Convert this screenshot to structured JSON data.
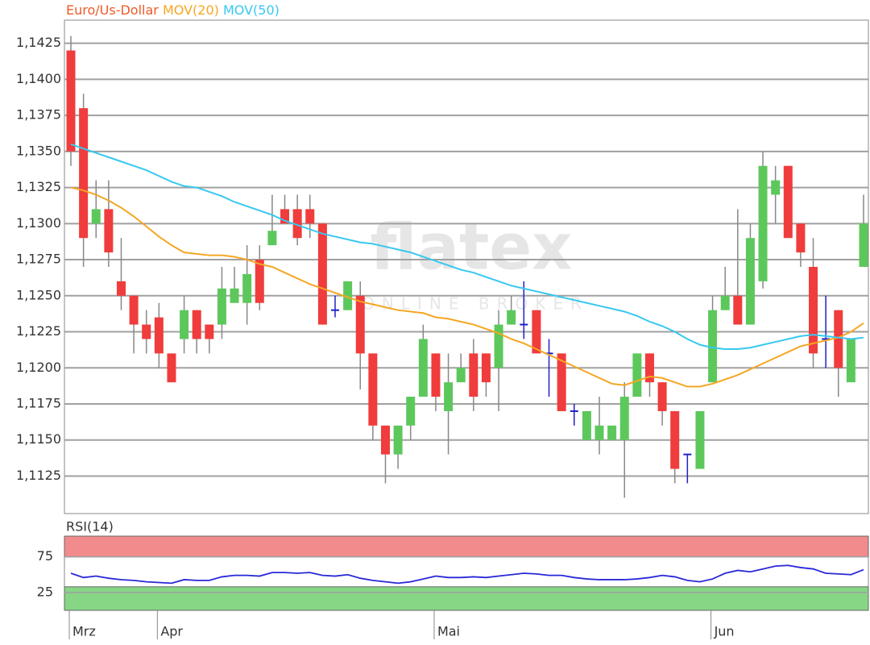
{
  "chart_data": [
    {
      "type": "candlestick",
      "name": "Euro/Us-Dollar",
      "color": "#f05a28",
      "up_color": "#5cc85c",
      "down_color": "#f03c3c",
      "unchanged_color": "#2020c8",
      "watermark": {
        "brand": "flatex",
        "tagline": "ONLINE BROKER"
      },
      "categories": [
        "Mrz",
        null,
        null,
        null,
        null,
        null,
        null,
        "Apr",
        null,
        null,
        null,
        null,
        null,
        null,
        null,
        null,
        null,
        null,
        null,
        null,
        null,
        null,
        null,
        null,
        null,
        null,
        null,
        null,
        null,
        "Mai",
        null,
        null,
        null,
        null,
        null,
        null,
        null,
        null,
        null,
        null,
        null,
        null,
        null,
        null,
        null,
        null,
        null,
        null,
        null,
        null,
        null,
        "Jun",
        null,
        null,
        null,
        null,
        null,
        null,
        null,
        null,
        null,
        null,
        null,
        null
      ],
      "open": [
        1.142,
        1.138,
        1.13,
        1.131,
        1.126,
        1.125,
        1.123,
        1.1235,
        1.121,
        1.122,
        1.124,
        1.123,
        1.123,
        1.1245,
        1.1245,
        1.1275,
        1.1285,
        1.131,
        1.131,
        1.131,
        1.13,
        1.124,
        1.124,
        1.125,
        1.121,
        1.116,
        1.114,
        1.116,
        1.118,
        1.121,
        1.117,
        1.119,
        1.121,
        1.121,
        1.12,
        1.123,
        1.123,
        1.124,
        1.121,
        1.121,
        1.117,
        1.115,
        1.115,
        1.115,
        1.115,
        1.118,
        1.121,
        1.119,
        1.117,
        1.114,
        1.113,
        1.119,
        1.124,
        1.125,
        1.123,
        1.126,
        1.132,
        1.134,
        1.13,
        1.127,
        1.122,
        1.124,
        1.119,
        1.127
      ],
      "high": [
        1.143,
        1.139,
        1.133,
        1.133,
        1.129,
        1.125,
        1.124,
        1.1245,
        1.121,
        1.125,
        1.124,
        1.123,
        1.127,
        1.127,
        1.1285,
        1.1285,
        1.132,
        1.132,
        1.132,
        1.132,
        1.13,
        1.125,
        1.126,
        1.126,
        1.121,
        1.116,
        1.116,
        1.118,
        1.123,
        1.121,
        1.121,
        1.121,
        1.122,
        1.121,
        1.124,
        1.125,
        1.126,
        1.124,
        1.122,
        1.121,
        1.1175,
        1.117,
        1.118,
        1.116,
        1.119,
        1.121,
        1.121,
        1.119,
        1.117,
        1.114,
        1.117,
        1.125,
        1.127,
        1.131,
        1.13,
        1.135,
        1.134,
        1.134,
        1.13,
        1.129,
        1.125,
        1.124,
        1.122,
        1.132
      ],
      "low": [
        1.134,
        1.127,
        1.129,
        1.127,
        1.124,
        1.121,
        1.121,
        1.12,
        1.119,
        1.121,
        1.121,
        1.121,
        1.122,
        1.1245,
        1.123,
        1.124,
        1.1285,
        1.13,
        1.1285,
        1.129,
        1.123,
        1.1235,
        1.124,
        1.1185,
        1.115,
        1.112,
        1.113,
        1.115,
        1.118,
        1.117,
        1.114,
        1.119,
        1.117,
        1.118,
        1.117,
        1.123,
        1.122,
        1.121,
        1.118,
        1.117,
        1.116,
        1.115,
        1.114,
        1.115,
        1.111,
        1.118,
        1.118,
        1.116,
        1.112,
        1.112,
        1.113,
        1.119,
        1.124,
        1.123,
        1.123,
        1.1255,
        1.13,
        1.129,
        1.127,
        1.12,
        1.12,
        1.118,
        1.119,
        1.127
      ],
      "close": [
        1.135,
        1.129,
        1.131,
        1.128,
        1.125,
        1.123,
        1.122,
        1.121,
        1.119,
        1.124,
        1.122,
        1.122,
        1.1255,
        1.1255,
        1.1265,
        1.1245,
        1.1295,
        1.13,
        1.129,
        1.13,
        1.123,
        1.124,
        1.126,
        1.121,
        1.116,
        1.114,
        1.116,
        1.118,
        1.122,
        1.118,
        1.119,
        1.12,
        1.118,
        1.119,
        1.123,
        1.124,
        1.123,
        1.121,
        1.121,
        1.117,
        1.117,
        1.117,
        1.116,
        1.116,
        1.118,
        1.121,
        1.119,
        1.117,
        1.113,
        1.114,
        1.117,
        1.124,
        1.125,
        1.123,
        1.129,
        1.134,
        1.133,
        1.129,
        1.128,
        1.121,
        1.122,
        1.12,
        1.122,
        1.13
      ],
      "overlays": [
        {
          "name": "MOV(20)",
          "color": "#f5a623",
          "values": [
            1.1325,
            1.1323,
            1.132,
            1.1316,
            1.1311,
            1.1305,
            1.1298,
            1.1291,
            1.1285,
            1.128,
            1.1279,
            1.1278,
            1.1278,
            1.1277,
            1.1275,
            1.1272,
            1.127,
            1.1266,
            1.1262,
            1.1258,
            1.1255,
            1.1252,
            1.1249,
            1.1246,
            1.1244,
            1.1242,
            1.124,
            1.1239,
            1.1238,
            1.1235,
            1.1234,
            1.1232,
            1.123,
            1.1227,
            1.1224,
            1.122,
            1.1217,
            1.1213,
            1.1209,
            1.1205,
            1.1201,
            1.1197,
            1.1193,
            1.1189,
            1.1188,
            1.1191,
            1.1194,
            1.1193,
            1.119,
            1.1187,
            1.1187,
            1.1189,
            1.1192,
            1.1195,
            1.1199,
            1.1203,
            1.1207,
            1.1211,
            1.1215,
            1.1217,
            1.1219,
            1.1221,
            1.1225,
            1.1231
          ]
        },
        {
          "name": "MOV(50)",
          "color": "#38c8f0",
          "values": [
            1.1355,
            1.1352,
            1.1349,
            1.1346,
            1.1343,
            1.134,
            1.1337,
            1.1333,
            1.1329,
            1.1326,
            1.1325,
            1.1322,
            1.1319,
            1.1315,
            1.1312,
            1.1309,
            1.1306,
            1.1302,
            1.1299,
            1.1296,
            1.1293,
            1.1291,
            1.1289,
            1.1287,
            1.1286,
            1.1284,
            1.1282,
            1.128,
            1.1277,
            1.1274,
            1.1271,
            1.1268,
            1.1266,
            1.1263,
            1.126,
            1.1257,
            1.1255,
            1.1253,
            1.1251,
            1.1249,
            1.1247,
            1.1245,
            1.1243,
            1.1241,
            1.1239,
            1.1236,
            1.1232,
            1.1229,
            1.1225,
            1.122,
            1.1216,
            1.1214,
            1.1213,
            1.1213,
            1.1214,
            1.1216,
            1.1218,
            1.122,
            1.1222,
            1.1223,
            1.1222,
            1.1221,
            1.122,
            1.1221
          ]
        }
      ],
      "ylim": [
        1.1099,
        1.1441
      ],
      "yticks": [
        {
          "value": 1.1125,
          "label": "1,1125"
        },
        {
          "value": 1.115,
          "label": "1,1150"
        },
        {
          "value": 1.1175,
          "label": "1,1175"
        },
        {
          "value": 1.12,
          "label": "1,1200"
        },
        {
          "value": 1.1225,
          "label": "1,1225"
        },
        {
          "value": 1.125,
          "label": "1,1250"
        },
        {
          "value": 1.1275,
          "label": "1,1275"
        },
        {
          "value": 1.13,
          "label": "1,1300"
        },
        {
          "value": 1.1325,
          "label": "1,1325"
        },
        {
          "value": 1.135,
          "label": "1,1350"
        },
        {
          "value": 1.1375,
          "label": "1,1375"
        },
        {
          "value": 1.14,
          "label": "1,1400"
        },
        {
          "value": 1.1425,
          "label": "1,1425"
        }
      ],
      "grid": true
    },
    {
      "type": "line",
      "series": [
        {
          "name": "RSI(14)",
          "color": "#2828d8",
          "values": [
            52,
            46,
            48,
            45,
            43,
            42,
            40,
            39,
            38,
            43,
            42,
            42,
            47,
            49,
            49,
            48,
            53,
            53,
            52,
            53,
            49,
            48,
            50,
            45,
            42,
            40,
            38,
            40,
            44,
            48,
            46,
            46,
            47,
            46,
            48,
            50,
            52,
            51,
            49,
            49,
            46,
            44,
            43,
            43,
            43,
            44,
            46,
            49,
            47,
            42,
            40,
            44,
            52,
            56,
            54,
            58,
            62,
            63,
            60,
            58,
            52,
            51,
            50,
            57
          ]
        }
      ],
      "bands": [
        {
          "from": 75,
          "to": 104,
          "color": "#f28c8c"
        },
        {
          "from": 0,
          "to": 33,
          "color": "#86d686"
        }
      ],
      "ylim": [
        0,
        104
      ],
      "yticks": [
        25,
        75
      ],
      "grid": true
    }
  ]
}
